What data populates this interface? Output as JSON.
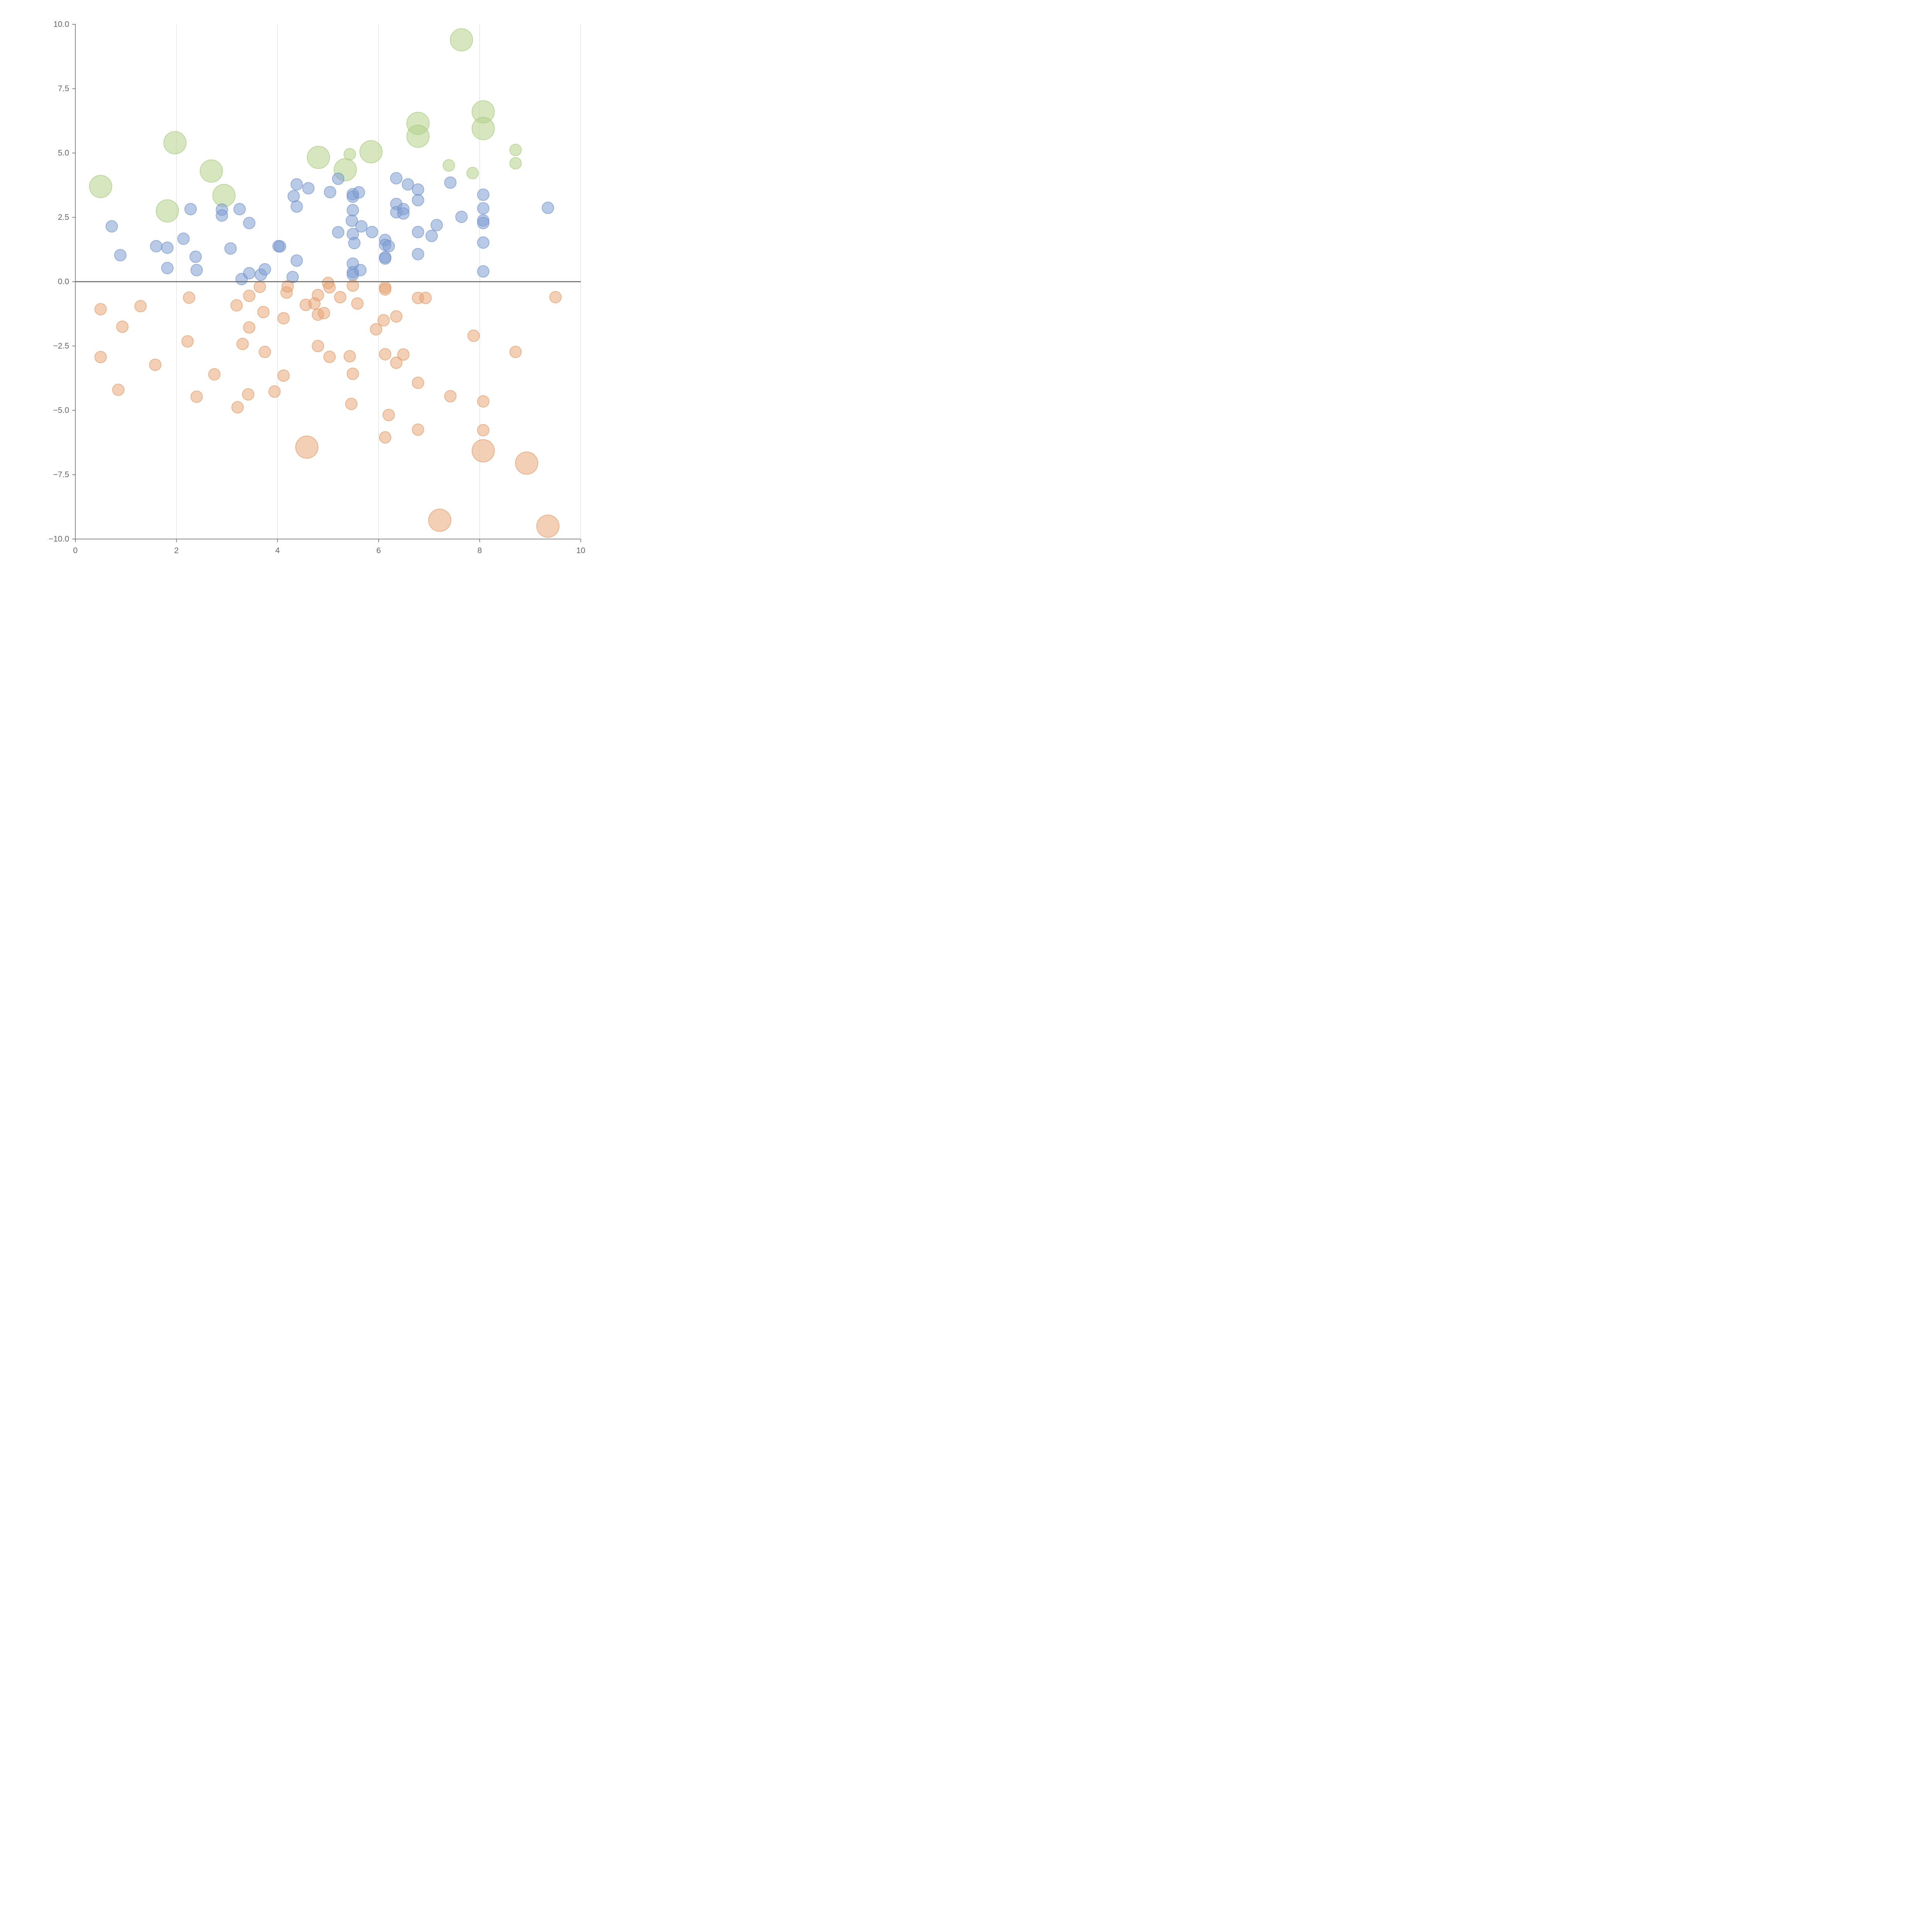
{
  "chart_data": {
    "type": "scatter",
    "title": "",
    "xlabel": "",
    "ylabel": "",
    "xlim": [
      0,
      10
    ],
    "ylim": [
      -10,
      10
    ],
    "x_ticks": [
      0,
      2,
      4,
      6,
      8,
      10
    ],
    "x_tick_labels": [
      "0",
      "2",
      "4",
      "6",
      "8",
      "10"
    ],
    "y_ticks": [
      10,
      7.5,
      5,
      2.5,
      0,
      -2.5,
      -5,
      -7.5,
      -10
    ],
    "y_tick_labels": [
      "10.0",
      "7.5",
      "5.0",
      "2.5",
      "0.0",
      "−2.5",
      "−5.0",
      "−7.5",
      "−10.0"
    ],
    "grid": "vertical lines at x ticks",
    "reference_line": {
      "axis": "y",
      "value": 0
    },
    "series": [
      {
        "name": "green",
        "color": "#b5d18a",
        "stroke": "#a4c478",
        "points": [
          {
            "x": 0.5,
            "y": 3.7,
            "size": 2
          },
          {
            "x": 1.97,
            "y": 5.4,
            "size": 2
          },
          {
            "x": 1.82,
            "y": 2.75,
            "size": 2
          },
          {
            "x": 2.69,
            "y": 4.3,
            "size": 2
          },
          {
            "x": 2.94,
            "y": 3.35,
            "size": 2
          },
          {
            "x": 4.81,
            "y": 4.83,
            "size": 2
          },
          {
            "x": 5.34,
            "y": 4.35,
            "size": 2
          },
          {
            "x": 5.85,
            "y": 5.05,
            "size": 2
          },
          {
            "x": 5.43,
            "y": 4.95,
            "size": 1
          },
          {
            "x": 6.78,
            "y": 6.15,
            "size": 2
          },
          {
            "x": 6.78,
            "y": 5.65,
            "size": 2
          },
          {
            "x": 7.64,
            "y": 9.4,
            "size": 2
          },
          {
            "x": 7.39,
            "y": 4.52,
            "size": 1
          },
          {
            "x": 7.86,
            "y": 4.22,
            "size": 1
          },
          {
            "x": 8.07,
            "y": 6.6,
            "size": 2
          },
          {
            "x": 8.07,
            "y": 5.95,
            "size": 2
          },
          {
            "x": 8.71,
            "y": 5.12,
            "size": 1
          },
          {
            "x": 8.71,
            "y": 4.6,
            "size": 1
          }
        ]
      },
      {
        "name": "blue",
        "color": "#7f9fd2",
        "stroke": "#6a8cc8",
        "points": [
          {
            "x": 0.72,
            "y": 2.15,
            "size": 1
          },
          {
            "x": 0.89,
            "y": 1.03,
            "size": 1
          },
          {
            "x": 1.6,
            "y": 1.38,
            "size": 1
          },
          {
            "x": 1.82,
            "y": 1.32,
            "size": 1
          },
          {
            "x": 1.82,
            "y": 0.53,
            "size": 1
          },
          {
            "x": 2.14,
            "y": 1.67,
            "size": 1
          },
          {
            "x": 2.28,
            "y": 2.82,
            "size": 1
          },
          {
            "x": 2.38,
            "y": 0.97,
            "size": 1
          },
          {
            "x": 2.4,
            "y": 0.45,
            "size": 1
          },
          {
            "x": 2.9,
            "y": 2.8,
            "size": 1
          },
          {
            "x": 2.9,
            "y": 2.57,
            "size": 1
          },
          {
            "x": 3.07,
            "y": 1.29,
            "size": 1
          },
          {
            "x": 3.25,
            "y": 2.82,
            "size": 1
          },
          {
            "x": 3.29,
            "y": 0.1,
            "size": 1
          },
          {
            "x": 3.44,
            "y": 2.28,
            "size": 1
          },
          {
            "x": 3.44,
            "y": 0.33,
            "size": 1
          },
          {
            "x": 3.67,
            "y": 0.27,
            "size": 1
          },
          {
            "x": 3.75,
            "y": 0.48,
            "size": 1
          },
          {
            "x": 4.02,
            "y": 1.38,
            "size": 1
          },
          {
            "x": 4.05,
            "y": 1.37,
            "size": 1
          },
          {
            "x": 4.3,
            "y": 0.18,
            "size": 1
          },
          {
            "x": 4.32,
            "y": 3.32,
            "size": 1
          },
          {
            "x": 4.38,
            "y": 3.78,
            "size": 1
          },
          {
            "x": 4.38,
            "y": 2.92,
            "size": 1
          },
          {
            "x": 4.38,
            "y": 0.82,
            "size": 1
          },
          {
            "x": 4.61,
            "y": 3.63,
            "size": 1
          },
          {
            "x": 5.04,
            "y": 3.48,
            "size": 1
          },
          {
            "x": 5.2,
            "y": 4.0,
            "size": 1
          },
          {
            "x": 5.2,
            "y": 1.92,
            "size": 1
          },
          {
            "x": 5.47,
            "y": 2.37,
            "size": 1
          },
          {
            "x": 5.49,
            "y": 3.4,
            "size": 1
          },
          {
            "x": 5.49,
            "y": 3.3,
            "size": 1
          },
          {
            "x": 5.49,
            "y": 2.78,
            "size": 1
          },
          {
            "x": 5.49,
            "y": 1.85,
            "size": 1
          },
          {
            "x": 5.49,
            "y": 0.7,
            "size": 1
          },
          {
            "x": 5.49,
            "y": 0.37,
            "size": 1
          },
          {
            "x": 5.49,
            "y": 0.27,
            "size": 1
          },
          {
            "x": 5.52,
            "y": 1.5,
            "size": 1
          },
          {
            "x": 5.61,
            "y": 3.47,
            "size": 1
          },
          {
            "x": 5.64,
            "y": 0.45,
            "size": 1
          },
          {
            "x": 5.66,
            "y": 2.15,
            "size": 1
          },
          {
            "x": 5.87,
            "y": 1.93,
            "size": 1
          },
          {
            "x": 6.13,
            "y": 1.62,
            "size": 1
          },
          {
            "x": 6.13,
            "y": 1.43,
            "size": 1
          },
          {
            "x": 6.13,
            "y": 0.95,
            "size": 1
          },
          {
            "x": 6.13,
            "y": 0.9,
            "size": 1
          },
          {
            "x": 6.2,
            "y": 1.38,
            "size": 1
          },
          {
            "x": 6.35,
            "y": 4.02,
            "size": 1
          },
          {
            "x": 6.35,
            "y": 3.02,
            "size": 1
          },
          {
            "x": 6.35,
            "y": 2.7,
            "size": 1
          },
          {
            "x": 6.49,
            "y": 2.82,
            "size": 1
          },
          {
            "x": 6.49,
            "y": 2.65,
            "size": 1
          },
          {
            "x": 6.58,
            "y": 3.78,
            "size": 1
          },
          {
            "x": 6.78,
            "y": 3.58,
            "size": 1
          },
          {
            "x": 6.78,
            "y": 3.17,
            "size": 1
          },
          {
            "x": 6.78,
            "y": 1.93,
            "size": 1
          },
          {
            "x": 6.78,
            "y": 1.07,
            "size": 1
          },
          {
            "x": 7.05,
            "y": 1.78,
            "size": 1
          },
          {
            "x": 7.15,
            "y": 2.2,
            "size": 1
          },
          {
            "x": 7.42,
            "y": 3.85,
            "size": 1
          },
          {
            "x": 7.64,
            "y": 2.52,
            "size": 1
          },
          {
            "x": 8.07,
            "y": 3.38,
            "size": 1
          },
          {
            "x": 8.07,
            "y": 2.85,
            "size": 1
          },
          {
            "x": 8.07,
            "y": 2.38,
            "size": 1
          },
          {
            "x": 8.07,
            "y": 2.28,
            "size": 1
          },
          {
            "x": 8.07,
            "y": 1.52,
            "size": 1
          },
          {
            "x": 8.07,
            "y": 0.4,
            "size": 1
          },
          {
            "x": 9.35,
            "y": 2.87,
            "size": 1
          }
        ]
      },
      {
        "name": "orange",
        "color": "#e8a878",
        "stroke": "#dd9560",
        "points": [
          {
            "x": 0.5,
            "y": -1.07,
            "size": 1
          },
          {
            "x": 0.5,
            "y": -2.93,
            "size": 1
          },
          {
            "x": 0.85,
            "y": -4.2,
            "size": 1
          },
          {
            "x": 0.93,
            "y": -1.75,
            "size": 1
          },
          {
            "x": 1.29,
            "y": -0.95,
            "size": 1
          },
          {
            "x": 1.58,
            "y": -3.23,
            "size": 1
          },
          {
            "x": 2.22,
            "y": -2.32,
            "size": 1
          },
          {
            "x": 2.25,
            "y": -0.62,
            "size": 1
          },
          {
            "x": 2.4,
            "y": -4.47,
            "size": 1
          },
          {
            "x": 2.75,
            "y": -3.6,
            "size": 1
          },
          {
            "x": 3.19,
            "y": -0.92,
            "size": 1
          },
          {
            "x": 3.21,
            "y": -4.88,
            "size": 1
          },
          {
            "x": 3.31,
            "y": -2.42,
            "size": 1
          },
          {
            "x": 3.42,
            "y": -4.38,
            "size": 1
          },
          {
            "x": 3.44,
            "y": -0.55,
            "size": 1
          },
          {
            "x": 3.44,
            "y": -1.78,
            "size": 1
          },
          {
            "x": 3.65,
            "y": -0.2,
            "size": 1
          },
          {
            "x": 3.72,
            "y": -1.18,
            "size": 1
          },
          {
            "x": 3.75,
            "y": -2.73,
            "size": 1
          },
          {
            "x": 3.94,
            "y": -4.27,
            "size": 1
          },
          {
            "x": 4.12,
            "y": -1.42,
            "size": 1
          },
          {
            "x": 4.12,
            "y": -3.65,
            "size": 1
          },
          {
            "x": 4.18,
            "y": -0.42,
            "size": 1
          },
          {
            "x": 4.2,
            "y": -0.18,
            "size": 1
          },
          {
            "x": 4.56,
            "y": -0.9,
            "size": 1
          },
          {
            "x": 4.58,
            "y": -6.43,
            "size": 2
          },
          {
            "x": 4.73,
            "y": -0.85,
            "size": 1
          },
          {
            "x": 4.8,
            "y": -0.52,
            "size": 1
          },
          {
            "x": 4.8,
            "y": -1.28,
            "size": 1
          },
          {
            "x": 4.8,
            "y": -2.5,
            "size": 1
          },
          {
            "x": 4.92,
            "y": -1.22,
            "size": 1
          },
          {
            "x": 5.0,
            "y": -0.05,
            "size": 1
          },
          {
            "x": 5.03,
            "y": -0.22,
            "size": 1
          },
          {
            "x": 5.03,
            "y": -2.92,
            "size": 1
          },
          {
            "x": 5.24,
            "y": -0.6,
            "size": 1
          },
          {
            "x": 5.43,
            "y": -2.9,
            "size": 1
          },
          {
            "x": 5.46,
            "y": -4.75,
            "size": 1
          },
          {
            "x": 5.49,
            "y": -0.15,
            "size": 1
          },
          {
            "x": 5.49,
            "y": -3.58,
            "size": 1
          },
          {
            "x": 5.58,
            "y": -0.85,
            "size": 1
          },
          {
            "x": 5.95,
            "y": -1.85,
            "size": 1
          },
          {
            "x": 6.1,
            "y": -1.5,
            "size": 1
          },
          {
            "x": 6.13,
            "y": -0.22,
            "size": 1
          },
          {
            "x": 6.13,
            "y": -0.3,
            "size": 1
          },
          {
            "x": 6.13,
            "y": -2.82,
            "size": 1
          },
          {
            "x": 6.13,
            "y": -6.05,
            "size": 1
          },
          {
            "x": 6.2,
            "y": -5.18,
            "size": 1
          },
          {
            "x": 6.35,
            "y": -1.35,
            "size": 1
          },
          {
            "x": 6.35,
            "y": -3.15,
            "size": 1
          },
          {
            "x": 6.49,
            "y": -2.83,
            "size": 1
          },
          {
            "x": 6.78,
            "y": -0.63,
            "size": 1
          },
          {
            "x": 6.78,
            "y": -3.93,
            "size": 1
          },
          {
            "x": 6.78,
            "y": -5.75,
            "size": 1
          },
          {
            "x": 6.93,
            "y": -0.63,
            "size": 1
          },
          {
            "x": 7.21,
            "y": -9.27,
            "size": 2
          },
          {
            "x": 7.42,
            "y": -4.45,
            "size": 1
          },
          {
            "x": 7.88,
            "y": -2.1,
            "size": 1
          },
          {
            "x": 8.07,
            "y": -4.65,
            "size": 1
          },
          {
            "x": 8.07,
            "y": -5.77,
            "size": 1
          },
          {
            "x": 8.07,
            "y": -6.57,
            "size": 2
          },
          {
            "x": 8.71,
            "y": -2.73,
            "size": 1
          },
          {
            "x": 8.93,
            "y": -7.05,
            "size": 2
          },
          {
            "x": 9.35,
            "y": -9.5,
            "size": 2
          },
          {
            "x": 9.5,
            "y": -0.6,
            "size": 1
          }
        ]
      }
    ]
  }
}
